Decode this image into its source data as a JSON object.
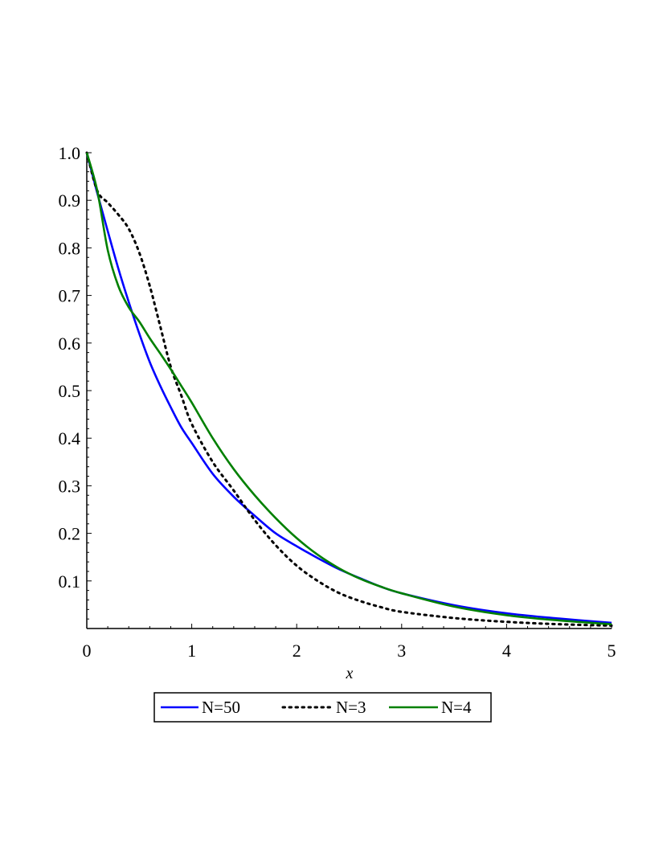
{
  "chart_data": {
    "type": "line",
    "title": "",
    "xlabel": "x",
    "ylabel": "",
    "xlim": [
      0,
      5
    ],
    "ylim": [
      0,
      1.0
    ],
    "grid": false,
    "legend_position": "bottom",
    "x_ticks": [
      "0",
      "1",
      "2",
      "3",
      "4",
      "5"
    ],
    "y_ticks": [
      "0.1",
      "0.2",
      "0.3",
      "0.4",
      "0.5",
      "0.6",
      "0.7",
      "0.8",
      "0.9",
      "1.0"
    ],
    "x": [
      0,
      0.1,
      0.2,
      0.3,
      0.4,
      0.5,
      0.6,
      0.7,
      0.8,
      0.9,
      1.0,
      1.2,
      1.4,
      1.6,
      1.8,
      2.0,
      2.2,
      2.4,
      2.6,
      2.8,
      3.0,
      3.5,
      4.0,
      4.5,
      5.0
    ],
    "series": [
      {
        "name": "N=50",
        "color": "#0000ff",
        "style": "solid",
        "values": [
          1.0,
          0.915,
          0.835,
          0.757,
          0.686,
          0.62,
          0.56,
          0.51,
          0.465,
          0.423,
          0.39,
          0.325,
          0.277,
          0.237,
          0.2,
          0.173,
          0.148,
          0.125,
          0.106,
          0.088,
          0.074,
          0.049,
          0.032,
          0.021,
          0.012
        ]
      },
      {
        "name": "N=3",
        "color": "#000000",
        "style": "dotted",
        "values": [
          1.0,
          0.92,
          0.895,
          0.87,
          0.84,
          0.79,
          0.72,
          0.635,
          0.55,
          0.49,
          0.43,
          0.35,
          0.29,
          0.228,
          0.175,
          0.132,
          0.1,
          0.075,
          0.058,
          0.045,
          0.035,
          0.022,
          0.014,
          0.009,
          0.006
        ]
      },
      {
        "name": "N=4",
        "color": "#008000",
        "style": "solid",
        "values": [
          1.0,
          0.92,
          0.795,
          0.72,
          0.675,
          0.645,
          0.61,
          0.578,
          0.545,
          0.51,
          0.475,
          0.4,
          0.335,
          0.28,
          0.232,
          0.19,
          0.155,
          0.127,
          0.105,
          0.088,
          0.074,
          0.046,
          0.028,
          0.017,
          0.009
        ]
      }
    ]
  }
}
